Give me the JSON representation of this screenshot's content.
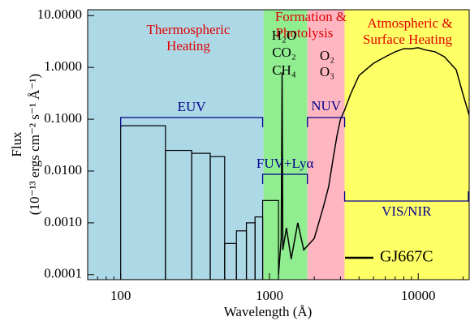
{
  "chart_data": {
    "type": "line",
    "xlabel": "Wavelength (Å)",
    "ylabel_lines": [
      "Flux",
      "(10⁻¹³ ergs cm⁻² s⁻¹ Å⁻¹)"
    ],
    "xlim": [
      60,
      22000
    ],
    "ylim": [
      8e-05,
      13
    ],
    "log_x": true,
    "log_y": true,
    "xticks": [
      100,
      1000,
      10000
    ],
    "yticks": [
      {
        "value": 10,
        "label": "10.0000"
      },
      {
        "value": 1,
        "label": "1.0000"
      },
      {
        "value": 0.1,
        "label": "0.1000"
      },
      {
        "value": 0.01,
        "label": "0.0100"
      },
      {
        "value": 0.001,
        "label": "0.0010"
      },
      {
        "value": 0.0001,
        "label": "0.0001"
      }
    ],
    "regions": [
      {
        "color": "#add8e6",
        "range": [
          60,
          912
        ]
      },
      {
        "color": "#90ee90",
        "range": [
          912,
          1800
        ]
      },
      {
        "color": "#ffb6c1",
        "range": [
          1800,
          3200
        ]
      },
      {
        "color": "#ffff66",
        "range": [
          3200,
          22000
        ]
      }
    ],
    "annotations": [
      {
        "lines": [
          "Thermospheric",
          "Heating"
        ],
        "color": "#e00000"
      },
      {
        "lines": [
          "Formation &",
          "Photolysis"
        ],
        "color": "#e00000"
      },
      {
        "lines": [
          "Atmospheric &",
          "Surface Heating"
        ],
        "color": "#e00000"
      },
      {
        "lines": [
          "H₂O",
          "CO₂",
          "CH₄"
        ],
        "color": "#000000"
      },
      {
        "lines": [
          "O₂",
          "O₃"
        ],
        "color": "#000000"
      }
    ],
    "brackets": [
      {
        "label": "EUV",
        "range": [
          100,
          900
        ],
        "color": "#00008b"
      },
      {
        "label": "FUV+Lyα",
        "range": [
          900,
          1800
        ],
        "color": "#00008b"
      },
      {
        "label": "NUV",
        "range": [
          1800,
          3200
        ],
        "color": "#00008b"
      },
      {
        "label": "VIS/NIR",
        "range": [
          3200,
          22000
        ],
        "color": "#00008b"
      }
    ],
    "histogram": {
      "bins": [
        100,
        200,
        300,
        400,
        500,
        600,
        700,
        800,
        900,
        1150
      ],
      "counts": [
        0.075,
        0.025,
        0.022,
        0.019,
        0.0004,
        0.0007,
        0.001,
        0.0013,
        0.0027
      ],
      "color": "#000000"
    },
    "series": [
      {
        "name": "GJ667C",
        "color": "#000000",
        "x": [
          1150,
          1200,
          1216,
          1230,
          1300,
          1400,
          1550,
          1700,
          2000,
          2300,
          2500,
          2700,
          2850,
          3000,
          3200,
          3500,
          4000,
          5000,
          6000,
          7000,
          8000,
          9000,
          10000,
          11000,
          13000,
          15000,
          18000,
          20000,
          22000
        ],
        "values": [
          0.0001,
          0.0005,
          0.8,
          0.0003,
          0.0008,
          0.0002,
          0.001,
          0.0003,
          0.0005,
          0.002,
          0.005,
          0.02,
          0.05,
          0.1,
          0.15,
          0.3,
          0.7,
          1.2,
          1.6,
          2.0,
          2.3,
          2.3,
          2.4,
          2.2,
          2.0,
          1.6,
          0.9,
          0.3,
          0.12
        ]
      }
    ],
    "legend": "lower right"
  }
}
